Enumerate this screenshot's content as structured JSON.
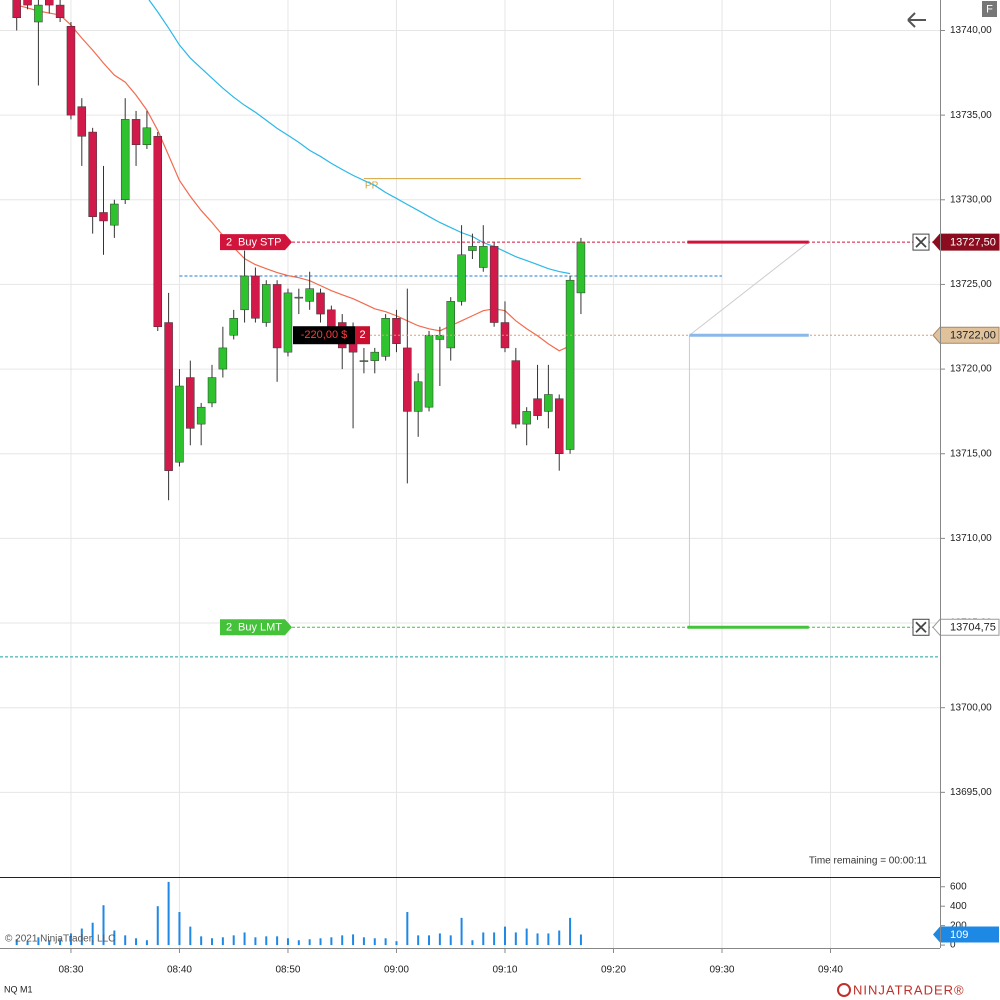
{
  "chart_data": {
    "type": "candlestick",
    "instrument": "NQ M1",
    "copyright": "© 2021 NinjaTrader, LLC",
    "timer": "Time remaining = 00:00:11",
    "up_color": "#2fc22f",
    "down_color": "#d21a4a",
    "x": [
      "08:25",
      "08:26",
      "08:27",
      "08:28",
      "08:29",
      "08:30",
      "08:31",
      "08:32",
      "08:33",
      "08:34",
      "08:35",
      "08:36",
      "08:37",
      "08:38",
      "08:39",
      "08:40",
      "08:41",
      "08:42",
      "08:43",
      "08:44",
      "08:45",
      "08:46",
      "08:47",
      "08:48",
      "08:49",
      "08:50",
      "08:51",
      "08:52",
      "08:53",
      "08:54",
      "08:55",
      "08:56",
      "08:57",
      "08:58",
      "08:59",
      "09:00",
      "09:01",
      "09:02",
      "09:03",
      "09:04",
      "09:05",
      "09:06",
      "09:07",
      "09:08",
      "09:09",
      "09:10",
      "09:11",
      "09:12",
      "09:13",
      "09:14",
      "09:15",
      "09:16",
      "09:17"
    ],
    "open": [
      13742.25,
      13742,
      13740.5,
      13742.25,
      13741.5,
      13740.25,
      13735.5,
      13734,
      13729.25,
      13728.5,
      13730,
      13734.75,
      13733.25,
      13733.75,
      13722.75,
      13714.5,
      13719.5,
      13716.75,
      13718,
      13720,
      13722,
      13723.5,
      13725.5,
      13722.75,
      13725,
      13721,
      13724.25,
      13724,
      13724.5,
      13723.5,
      13722.75,
      13721.75,
      13720.5,
      13720.5,
      13720.75,
      13723,
      13721.25,
      13717.5,
      13717.75,
      13721.75,
      13721.25,
      13724,
      13727,
      13726,
      13727.25,
      13722.75,
      13720.5,
      13716.75,
      13718.25,
      13717.5,
      13718.25,
      13715.25,
      13724.5
    ],
    "high": [
      13742.5,
      13742.5,
      13742,
      13742.5,
      13742.5,
      13740.5,
      13736,
      13734.25,
      13732,
      13730,
      13736,
      13735.25,
      13735.25,
      13734,
      13724.5,
      13720,
      13720.5,
      13718,
      13720.25,
      13722.5,
      13723.5,
      13727,
      13726,
      13725.25,
      13725.25,
      13724.75,
      13724.75,
      13725.75,
      13724.75,
      13723.75,
      13723.25,
      13722.75,
      13721.25,
      13721.25,
      13723.25,
      13723.5,
      13724.75,
      13719.75,
      13722.25,
      13722.5,
      13724.25,
      13728.5,
      13728,
      13728.5,
      13727.5,
      13724,
      13721.25,
      13717.75,
      13720.25,
      13720.25,
      13718.5,
      13725.5,
      13727.75
    ],
    "low": [
      13740,
      13741.25,
      13736.75,
      13741,
      13740.5,
      13734.75,
      13732,
      13728,
      13726.75,
      13727.75,
      13729.75,
      13732,
      13733,
      13722.25,
      13712.25,
      13714.25,
      13715.5,
      13715.5,
      13717.75,
      13719.5,
      13721.75,
      13722.75,
      13722.75,
      13722.5,
      13719.25,
      13720.75,
      13723.25,
      13723.5,
      13722.75,
      13721.5,
      13720,
      13716.5,
      13719.75,
      13719.75,
      13720.5,
      13721,
      13713.25,
      13716,
      13717.5,
      13719,
      13720.5,
      13723.75,
      13726.5,
      13725.75,
      13722.5,
      13721,
      13716.5,
      13715.5,
      13717,
      13716.5,
      13714,
      13715,
      13723.25
    ],
    "close": [
      13740.75,
      13741.5,
      13741.5,
      13741.5,
      13740.75,
      13735,
      13733.75,
      13729,
      13728.75,
      13729.75,
      13734.75,
      13733.25,
      13734.25,
      13722.5,
      13714,
      13719,
      13716.5,
      13717.75,
      13719.5,
      13721.25,
      13723,
      13725.5,
      13723,
      13725,
      13721.25,
      13724.5,
      13724.25,
      13724.75,
      13723.25,
      13722.25,
      13721.25,
      13721,
      13720.5,
      13721,
      13723,
      13721.5,
      13717.5,
      13719.25,
      13722,
      13722,
      13724,
      13726.75,
      13727.25,
      13727.25,
      13722.75,
      13721.25,
      13716.75,
      13717.5,
      13717.25,
      13718.5,
      13715,
      13725.25,
      13727.5
    ],
    "overlays": [
      {
        "color": "#f26b50",
        "values": [
          13741.5,
          13741.33,
          13741.15,
          13741.03,
          13740.91,
          13740.32,
          13739.55,
          13738.84,
          13738.07,
          13737.36,
          13736.95,
          13736.18,
          13735.29,
          13734.1,
          13732.62,
          13731.14,
          13730.2,
          13729.37,
          13728.66,
          13727.89,
          13727.18,
          13726.52,
          13726.17,
          13725.93,
          13725.7,
          13725.52,
          13725.4,
          13725.22,
          13724.93,
          13724.63,
          13724.39,
          13724.16,
          13723.86,
          13723.56,
          13723.39,
          13723.15,
          13722.85,
          13722.56,
          13722.38,
          13722.26,
          13722.56,
          13722.85,
          13723.15,
          13723.45,
          13723.56,
          13723.45,
          13722.85,
          13722.38,
          13721.97,
          13721.49,
          13721.08,
          13721.37,
          null
        ]
      },
      {
        "color": "#2bb8e8",
        "values": [
          null,
          null,
          null,
          null,
          null,
          null,
          null,
          null,
          null,
          null,
          null,
          null,
          13741.98,
          13741.09,
          13740.14,
          13739.14,
          13738.37,
          13737.77,
          13737.18,
          13736.59,
          13736.06,
          13735.58,
          13735.17,
          13734.7,
          13734.22,
          13733.81,
          13733.39,
          13732.92,
          13732.56,
          13732.15,
          13731.79,
          13731.44,
          13731.14,
          13730.85,
          13730.43,
          13730.08,
          13729.72,
          13729.37,
          13729.01,
          13728.66,
          13728.36,
          13728.06,
          13727.83,
          13727.47,
          13727.24,
          13726.94,
          13726.64,
          13726.41,
          13726.17,
          13725.93,
          13725.76,
          13725.64,
          null
        ]
      }
    ],
    "xlim": [
      "08:23",
      "09:50"
    ],
    "xticks": [
      "08:30",
      "08:40",
      "08:50",
      "09:00",
      "09:10",
      "09:20",
      "09:30",
      "09:40"
    ],
    "ylim": [
      13690,
      13741.8
    ],
    "yticks": [
      {
        "value": 13695,
        "label": "13695,00"
      },
      {
        "value": 13700,
        "label": "13700,00"
      },
      {
        "value": 13705,
        "label": "13705,00"
      },
      {
        "value": 13710,
        "label": "13710,00"
      },
      {
        "value": 13715,
        "label": "13715,00"
      },
      {
        "value": 13720,
        "label": "13720,00"
      },
      {
        "value": 13725,
        "label": "13725,00"
      },
      {
        "value": 13730,
        "label": "13730,00"
      },
      {
        "value": 13735,
        "label": "13735,00"
      },
      {
        "value": 13740,
        "label": "13740,00"
      }
    ],
    "grid": true,
    "pivot": {
      "label": "PP",
      "value": 13731.25,
      "color": "#d4a23a",
      "start": "08:57",
      "end": "09:17"
    },
    "levels": [
      {
        "value": 13725.5,
        "color": "#1e7fd8",
        "start": "08:40",
        "end": "09:30"
      },
      {
        "value": 13703,
        "color": "#1aa3a3",
        "start": "08:23",
        "end": "09:50"
      }
    ],
    "orders": [
      {
        "quantity": 2,
        "label": "Buy STP",
        "price": 13727.5,
        "price_label": "13727,50",
        "color": "#d0143c",
        "tag_color": "#8a0c1e"
      },
      {
        "quantity": 2,
        "label": "Buy LMT",
        "price": 13704.75,
        "price_label": "13704,75",
        "color": "#44c23a",
        "tag_color": "#ffffff"
      }
    ],
    "position": {
      "pnl": -220,
      "pnl_label": "-220,00 $",
      "quantity": 2,
      "price": 13722,
      "price_label": "13722,00",
      "color": "#e89a6a",
      "tag_color": "#dfc29c"
    },
    "volume": {
      "color": "#1e88e5",
      "ylim": [
        -30,
        690
      ],
      "yticks": [
        0,
        200,
        400,
        600
      ],
      "values": [
        60,
        40,
        80,
        50,
        60,
        120,
        170,
        230,
        410,
        150,
        100,
        70,
        50,
        400,
        650,
        340,
        190,
        90,
        70,
        80,
        100,
        130,
        80,
        90,
        90,
        70,
        50,
        60,
        70,
        80,
        100,
        110,
        80,
        70,
        70,
        40,
        340,
        100,
        100,
        120,
        100,
        280,
        50,
        130,
        130,
        190,
        130,
        170,
        120,
        120,
        150,
        280,
        109
      ]
    }
  },
  "ui": {
    "button": "F",
    "logo": "NINJATRADER®"
  }
}
